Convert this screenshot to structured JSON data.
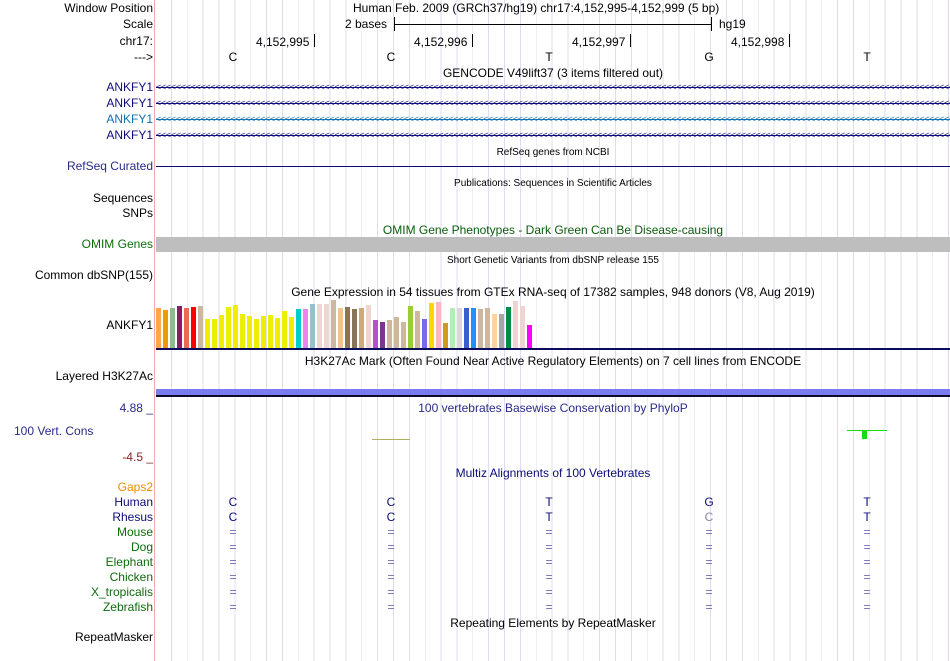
{
  "header": {
    "window_position_label": "Window Position",
    "window_position": "Human Feb. 2009 (GRCh37/hg19)   chr17:4,152,995-4,152,999 (5 bp)",
    "scale_label": "Scale",
    "scale_text": "2 bases",
    "scale_db": "hg19",
    "chrom_label": "chr17:",
    "strand_label": "--->",
    "positions": [
      "4,152,995",
      "4,152,996",
      "4,152,997",
      "4,152,998"
    ],
    "bases": [
      "C",
      "C",
      "T",
      "G",
      "T"
    ]
  },
  "tracks": {
    "gencode": {
      "title": "GENCODE V49lift37 (3 items filtered out)",
      "genes": [
        {
          "name": "ANKFY1",
          "color": "#0c0c78"
        },
        {
          "name": "ANKFY1",
          "color": "#0c0c78"
        },
        {
          "name": "ANKFY1",
          "color": "#1070b0"
        },
        {
          "name": "ANKFY1",
          "color": "#0c0c78"
        }
      ]
    },
    "refseq": {
      "title": "RefSeq genes from NCBI",
      "label": "RefSeq Curated"
    },
    "pubs": {
      "title": "Publications: Sequences in Scientific Articles",
      "label": "Sequences"
    },
    "snps": {
      "label": "SNPs"
    },
    "omim": {
      "title": "OMIM Gene Phenotypes - Dark Green Can Be Disease-causing",
      "label": "OMIM Genes"
    },
    "dbsnp": {
      "title": "Short Genetic Variants from dbSNP release 155",
      "label": "Common dbSNP(155)"
    },
    "gtex": {
      "title": "Gene Expression in 54 tissues from GTEx RNA-seq of 17382 samples, 948 donors (V8, Aug 2019)",
      "label": "ANKFY1"
    },
    "h3k27ac": {
      "title": "H3K27Ac Mark (Often Found Near Active Regulatory Elements) on 7 cell lines from ENCODE",
      "label": "Layered H3K27Ac"
    },
    "phylop": {
      "title": "100 vertebrates Basewise Conservation by PhyloP",
      "label": "100 Vert. Cons",
      "max": "4.88 _",
      "min": "-4.5 _"
    },
    "multiz": {
      "title": "Multiz Alignments of 100 Vertebrates",
      "gaps_label": "Gaps2",
      "species": [
        {
          "name": "Human",
          "bases": [
            "C",
            "C",
            "T",
            "G",
            "T"
          ],
          "color": "#0c0c78"
        },
        {
          "name": "Rhesus",
          "bases": [
            "C",
            "C",
            "T",
            "C",
            "T"
          ],
          "color": "#0c0c78"
        },
        {
          "name": "Mouse",
          "bases": [
            "=",
            "=",
            "=",
            "=",
            "="
          ],
          "color": "#0c6c0c"
        },
        {
          "name": "Dog",
          "bases": [
            "=",
            "=",
            "=",
            "=",
            "="
          ],
          "color": "#0c6c0c"
        },
        {
          "name": "Elephant",
          "bases": [
            "=",
            "=",
            "=",
            "=",
            "="
          ],
          "color": "#0c6c0c"
        },
        {
          "name": "Chicken",
          "bases": [
            "=",
            "=",
            "=",
            "=",
            "="
          ],
          "color": "#0c6c0c"
        },
        {
          "name": "X_tropicalis",
          "bases": [
            "=",
            "=",
            "=",
            "=",
            "="
          ],
          "color": "#0c6c0c"
        },
        {
          "name": "Zebrafish",
          "bases": [
            "=",
            "=",
            "=",
            "=",
            "="
          ],
          "color": "#0c6c0c"
        }
      ]
    },
    "repeatmasker": {
      "title": "Repeating Elements by RepeatMasker",
      "label": "RepeatMasker"
    }
  },
  "chart_data": {
    "type": "bar",
    "title": "Gene Expression in 54 tissues from GTEx RNA-seq of 17382 samples, 948 donors (V8, Aug 2019)",
    "values": [
      40,
      38,
      40,
      42,
      40,
      41,
      42,
      29,
      29,
      33,
      41,
      43,
      34,
      32,
      29,
      32,
      33,
      30,
      37,
      31,
      39,
      39,
      44,
      44,
      44,
      48,
      40,
      41,
      39,
      40,
      43,
      28,
      26,
      28,
      31,
      26,
      42,
      37,
      29,
      45,
      46,
      25,
      40,
      40,
      40,
      40,
      39,
      40,
      34,
      34,
      41,
      47,
      42,
      23
    ],
    "colors": [
      "#FFA54F",
      "#EE9A00",
      "#8FBC8F",
      "#8B1C62",
      "#EE6A50",
      "#FF0000",
      "#CDB79E",
      "#EEEE00",
      "#EEEE00",
      "#EEEE00",
      "#EEEE00",
      "#EEEE00",
      "#EEEE00",
      "#EEEE00",
      "#EEEE00",
      "#EEEE00",
      "#EEEE00",
      "#EEEE00",
      "#EEEE00",
      "#EEEE00",
      "#00CDCD",
      "#EE82EE",
      "#9AC0CD",
      "#EED5D2",
      "#EED5D2",
      "#CDB79E",
      "#EEC591",
      "#8B7355",
      "#8B7355",
      "#CDAA7D",
      "#EED5D2",
      "#B452CD",
      "#7A378B",
      "#CDB79E",
      "#CDB79E",
      "#CDB79E",
      "#9ACD32",
      "#CDB79E",
      "#7B68EE",
      "#FFD700",
      "#FFB6C1",
      "#CD9B1D",
      "#B4EEB4",
      "#D9D9D9",
      "#3A5FCD",
      "#1E90FF",
      "#CDB79E",
      "#CDB79E",
      "#FFD39B",
      "#A6A6A6",
      "#008B45",
      "#EED5D2",
      "#EED5D2",
      "#FF00FF"
    ]
  }
}
